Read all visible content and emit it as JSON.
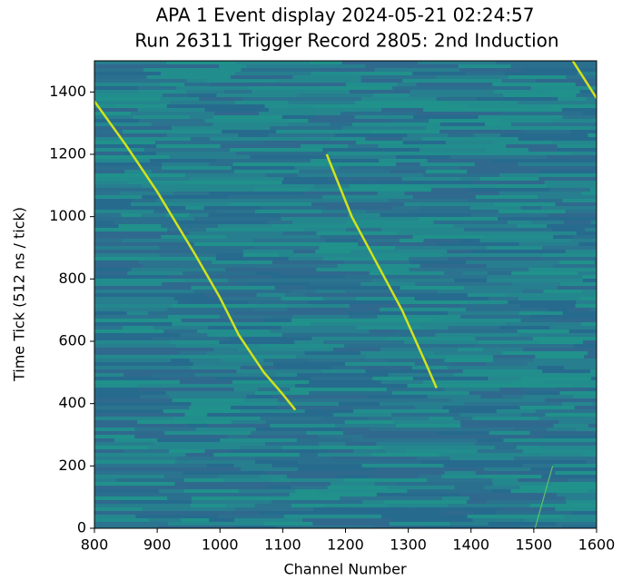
{
  "chart_data": {
    "type": "line",
    "title": "APA 1 Event display 2024-05-21 02:24:57",
    "subtitle": "Run 26311 Trigger Record 2805: 2nd Induction",
    "x_label": "Channel Number",
    "y_label": "Time Tick (512 ns / tick)",
    "xlim": [
      800,
      1600
    ],
    "ylim": [
      0,
      1500
    ],
    "xticks": [
      800,
      900,
      1000,
      1100,
      1200,
      1300,
      1400,
      1500,
      1600
    ],
    "yticks": [
      0,
      200,
      400,
      600,
      800,
      1000,
      1200,
      1400
    ],
    "series": [
      {
        "color": "#d2e21b",
        "x": [
          800,
          850,
          900,
          960,
          1000,
          1030,
          1070,
          1100,
          1120
        ],
        "values": [
          1370,
          1230,
          1080,
          880,
          740,
          620,
          500,
          430,
          380
        ]
      },
      {
        "color": "#d2e21b",
        "x": [
          1170,
          1210,
          1250,
          1290,
          1330,
          1345
        ],
        "values": [
          1200,
          1000,
          850,
          700,
          520,
          450
        ]
      },
      {
        "color": "#d2e21b",
        "x": [
          1562,
          1600
        ],
        "values": [
          1500,
          1380
        ]
      },
      {
        "color": "#5fc26a",
        "x": [
          1502,
          1530
        ],
        "values": [
          0,
          200
        ]
      }
    ]
  }
}
